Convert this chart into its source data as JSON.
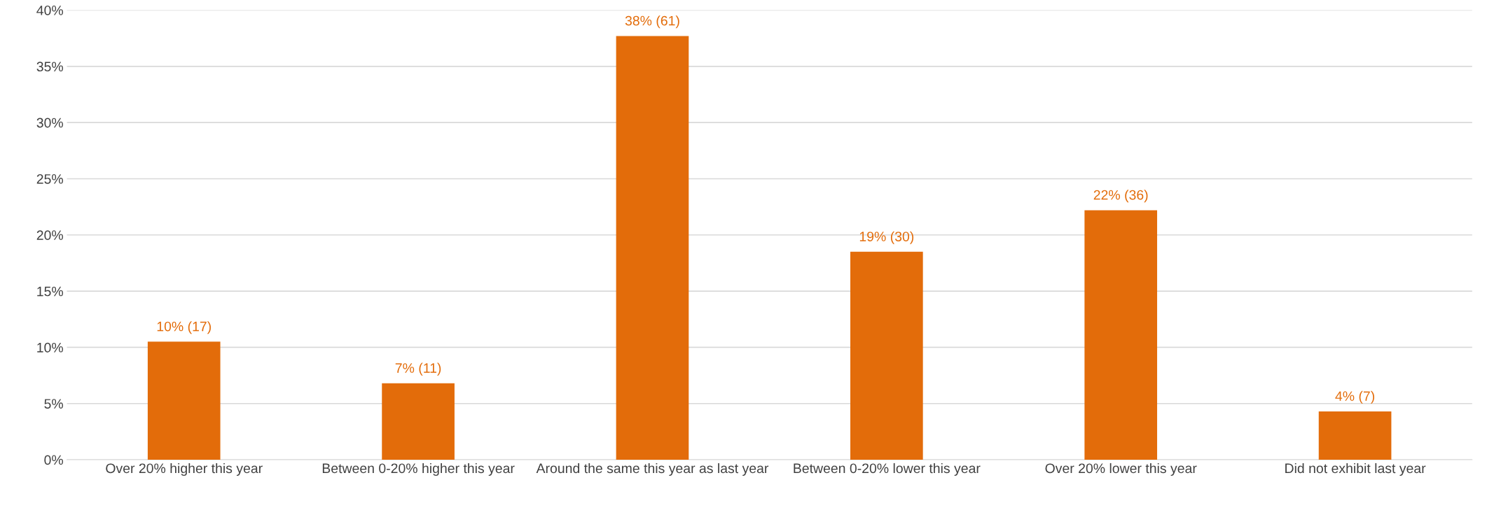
{
  "chart_data": {
    "type": "bar",
    "categories": [
      "Over 20% higher this year",
      "Between 0-20% higher this year",
      "Around the same this year as last year",
      "Between 0-20% lower this year",
      "Over 20% lower this year",
      "Did not exhibit last year"
    ],
    "values": [
      10.5,
      6.8,
      37.7,
      18.5,
      22.2,
      4.3
    ],
    "value_labels": [
      "10% (17)",
      "7% (11)",
      "38% (61)",
      "19% (30)",
      "22% (36)",
      "4% (7)"
    ],
    "color": "#e36c0a",
    "ylim": [
      0,
      40
    ],
    "yticks": [
      {
        "value": 0,
        "label": "0%"
      },
      {
        "value": 5,
        "label": "5%"
      },
      {
        "value": 10,
        "label": "10%"
      },
      {
        "value": 15,
        "label": "15%"
      },
      {
        "value": 20,
        "label": "20%"
      },
      {
        "value": 25,
        "label": "25%"
      },
      {
        "value": 30,
        "label": "30%"
      },
      {
        "value": 35,
        "label": "35%"
      },
      {
        "value": 40,
        "label": "40%"
      }
    ],
    "grid": "y"
  }
}
